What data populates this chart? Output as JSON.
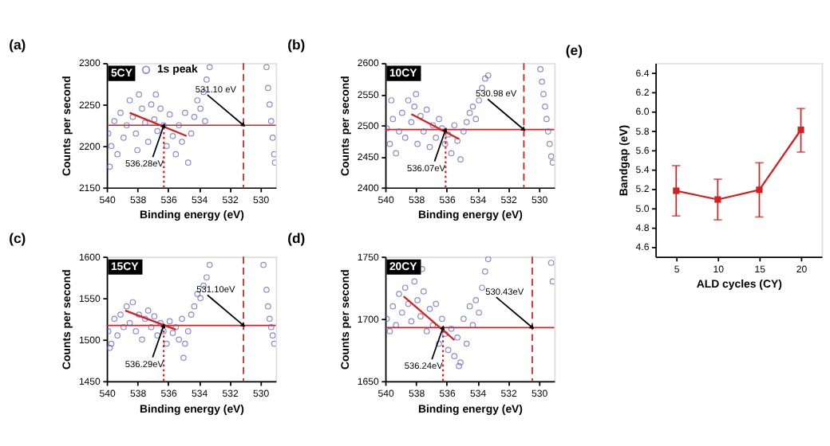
{
  "chart_data": [
    {
      "type": "scatter",
      "title": "(a)",
      "xlabel": "Binding energy (eV)",
      "ylabel": "Counts per second",
      "xlim": [
        540,
        529
      ],
      "xticks": [
        540,
        538,
        536,
        534,
        532,
        530
      ],
      "ylim": [
        2150,
        2300
      ],
      "yticks": [
        2150,
        2200,
        2250,
        2300
      ],
      "legend": "top",
      "series": [
        {
          "name": "1s peak",
          "color": "#5b5bbf",
          "marker": "circle",
          "x": [
            539.9,
            539.8,
            539.7,
            539.5,
            539.3,
            539.1,
            538.9,
            538.7,
            538.5,
            538.3,
            538.1,
            538.0,
            537.9,
            537.7,
            537.5,
            537.3,
            537.1,
            536.9,
            536.8,
            536.7,
            536.5,
            536.3,
            536.1,
            535.9,
            535.7,
            535.5,
            535.3,
            535.1,
            534.9,
            534.7,
            534.5,
            534.3,
            534.1,
            533.9,
            533.7,
            533.6,
            533.5,
            533.3,
            529.6,
            529.5,
            529.4,
            529.3,
            529.2,
            529.1,
            529.05
          ],
          "values": [
            2215,
            2175,
            2200,
            2230,
            2190,
            2240,
            2210,
            2225,
            2255,
            2235,
            2215,
            2195,
            2262,
            2245,
            2228,
            2205,
            2250,
            2232,
            2262,
            2218,
            2245,
            2225,
            2200,
            2238,
            2212,
            2190,
            2225,
            2205,
            2240,
            2180,
            2215,
            2235,
            2255,
            2245,
            2265,
            2230,
            2280,
            2295,
            2295,
            2270,
            2250,
            2230,
            2210,
            2190,
            2180
          ]
        },
        {
          "type": "line",
          "color": "#d62020",
          "x": [
            538.5,
            534.8
          ],
          "values": [
            2240,
            2212
          ]
        },
        {
          "type": "line",
          "color": "#d62020",
          "line_style": "dotted",
          "x": [
            536.28,
            536.28
          ],
          "values": [
            2150,
            2225
          ]
        }
      ],
      "ref_lines": [
        {
          "axis": "y",
          "value": 2225,
          "color": "#d62020",
          "line_style": "solid"
        },
        {
          "axis": "x",
          "value": 531.1,
          "color": "#d62020",
          "line_style": "dashed"
        }
      ],
      "annotations": [
        "5CY",
        {
          "text": "531.10 eV",
          "x": 531.1,
          "y": 2225
        },
        {
          "text": "536.28eV",
          "x": 536.28,
          "y": 2225
        }
      ]
    },
    {
      "type": "scatter",
      "title": "(b)",
      "xlabel": "Binding energy (eV)",
      "ylabel": "Counts per second",
      "xlim": [
        540,
        529
      ],
      "xticks": [
        540,
        538,
        536,
        534,
        532,
        530
      ],
      "ylim": [
        2400,
        2600
      ],
      "yticks": [
        2400,
        2450,
        2500,
        2550,
        2600
      ],
      "legend": "top",
      "series": [
        {
          "name": "1s peak",
          "color": "#5b5bbf",
          "marker": "circle",
          "x": [
            539.9,
            539.7,
            539.6,
            539.5,
            539.3,
            539.1,
            538.9,
            538.7,
            538.5,
            538.3,
            538.1,
            538.0,
            537.9,
            537.7,
            537.5,
            537.3,
            537.1,
            536.9,
            536.7,
            536.5,
            536.3,
            536.1,
            535.9,
            535.7,
            535.5,
            535.3,
            535.1,
            534.9,
            534.7,
            534.5,
            534.3,
            534.1,
            533.9,
            533.7,
            533.5,
            533.3,
            529.9,
            529.8,
            529.7,
            529.6,
            529.5,
            529.4,
            529.3,
            529.2,
            529.1
          ],
          "values": [
            2495,
            2470,
            2540,
            2510,
            2455,
            2490,
            2520,
            2480,
            2540,
            2505,
            2530,
            2550,
            2470,
            2515,
            2490,
            2525,
            2465,
            2500,
            2480,
            2510,
            2495,
            2470,
            2485,
            2455,
            2500,
            2475,
            2445,
            2490,
            2505,
            2520,
            2530,
            2510,
            2540,
            2560,
            2575,
            2580,
            2590,
            2570,
            2550,
            2530,
            2510,
            2490,
            2470,
            2450,
            2440
          ]
        },
        {
          "type": "line",
          "color": "#d62020",
          "x": [
            538.3,
            535.2
          ],
          "values": [
            2518,
            2478
          ]
        },
        {
          "type": "line",
          "color": "#d62020",
          "line_style": "dotted",
          "x": [
            536.07,
            536.07
          ],
          "values": [
            2400,
            2493
          ]
        }
      ],
      "ref_lines": [
        {
          "axis": "y",
          "value": 2493,
          "color": "#d62020",
          "line_style": "solid"
        },
        {
          "axis": "x",
          "value": 530.98,
          "color": "#d62020",
          "line_style": "dashed"
        }
      ],
      "annotations": [
        "10CY",
        {
          "text": "530.98 eV",
          "x": 530.98,
          "y": 2493
        },
        {
          "text": "536.07eV",
          "x": 536.07,
          "y": 2493
        }
      ]
    },
    {
      "type": "scatter",
      "title": "(c)",
      "xlabel": "Binding energy (eV)",
      "ylabel": "Counts per second",
      "xlim": [
        540,
        529
      ],
      "xticks": [
        540,
        538,
        536,
        534,
        532,
        530
      ],
      "ylim": [
        1450,
        1600
      ],
      "yticks": [
        1450,
        1500,
        1550,
        1600
      ],
      "legend": "top",
      "series": [
        {
          "name": "1s peak",
          "color": "#5b5bbf",
          "marker": "circle",
          "x": [
            539.9,
            539.8,
            539.7,
            539.5,
            539.3,
            539.1,
            538.9,
            538.7,
            538.5,
            538.3,
            538.1,
            537.9,
            537.7,
            537.5,
            537.3,
            537.1,
            536.9,
            536.7,
            536.5,
            536.3,
            536.1,
            535.9,
            535.7,
            535.5,
            535.3,
            535.1,
            535.0,
            534.9,
            534.7,
            534.5,
            534.3,
            534.1,
            533.9,
            533.7,
            533.5,
            533.3,
            529.8,
            529.6,
            529.5,
            529.4,
            529.3,
            529.2,
            529.1
          ],
          "values": [
            1510,
            1490,
            1495,
            1525,
            1505,
            1530,
            1515,
            1540,
            1520,
            1545,
            1510,
            1530,
            1500,
            1525,
            1535,
            1515,
            1528,
            1505,
            1520,
            1510,
            1495,
            1522,
            1508,
            1515,
            1500,
            1525,
            1478,
            1495,
            1510,
            1530,
            1540,
            1555,
            1550,
            1565,
            1575,
            1590,
            1590,
            1560,
            1540,
            1525,
            1515,
            1505,
            1495
          ]
        },
        {
          "type": "line",
          "color": "#d62020",
          "x": [
            538.8,
            535.5
          ],
          "values": [
            1535,
            1512
          ]
        },
        {
          "type": "line",
          "color": "#d62020",
          "line_style": "dotted",
          "x": [
            536.29,
            536.29
          ],
          "values": [
            1450,
            1517
          ]
        }
      ],
      "ref_lines": [
        {
          "axis": "y",
          "value": 1517,
          "color": "#d62020",
          "line_style": "solid"
        },
        {
          "axis": "x",
          "value": 531.1,
          "color": "#d62020",
          "line_style": "dashed"
        }
      ],
      "annotations": [
        "15CY",
        {
          "text": "531.10eV",
          "x": 531.1,
          "y": 1517
        },
        {
          "text": "536.29eV",
          "x": 536.29,
          "y": 1517
        }
      ]
    },
    {
      "type": "scatter",
      "title": "(d)",
      "xlabel": "Binding energy (eV)",
      "ylabel": "Counts per second",
      "xlim": [
        540,
        529
      ],
      "xticks": [
        540,
        538,
        536,
        534,
        532,
        530
      ],
      "ylim": [
        1650,
        1750
      ],
      "yticks": [
        1650,
        1700,
        1750
      ],
      "legend": "top",
      "series": [
        {
          "name": "1s peak",
          "color": "#5b5bbf",
          "marker": "circle",
          "x": [
            539.9,
            539.7,
            539.5,
            539.3,
            539.1,
            538.9,
            538.7,
            538.5,
            538.3,
            538.1,
            537.9,
            537.7,
            537.6,
            537.5,
            537.3,
            537.1,
            536.9,
            536.7,
            536.5,
            536.3,
            536.1,
            535.9,
            535.7,
            535.5,
            535.3,
            535.2,
            535.1,
            534.9,
            534.7,
            534.5,
            534.3,
            534.1,
            533.9,
            533.7,
            533.5,
            533.3,
            529.2,
            529.1
          ],
          "values": [
            1700,
            1690,
            1710,
            1695,
            1720,
            1705,
            1725,
            1712,
            1698,
            1730,
            1715,
            1702,
            1740,
            1722,
            1690,
            1708,
            1695,
            1712,
            1680,
            1700,
            1688,
            1675,
            1692,
            1670,
            1685,
            1662,
            1665,
            1700,
            1680,
            1710,
            1695,
            1715,
            1705,
            1725,
            1738,
            1748,
            1745,
            1730
          ]
        },
        {
          "type": "line",
          "color": "#d62020",
          "x": [
            538.8,
            535.5
          ],
          "values": [
            1718,
            1683
          ]
        },
        {
          "type": "line",
          "color": "#d62020",
          "line_style": "dotted",
          "x": [
            536.24,
            536.24
          ],
          "values": [
            1650,
            1693
          ]
        }
      ],
      "ref_lines": [
        {
          "axis": "y",
          "value": 1693,
          "color": "#d62020",
          "line_style": "solid"
        },
        {
          "axis": "x",
          "value": 530.43,
          "color": "#d62020",
          "line_style": "dashed"
        }
      ],
      "annotations": [
        "20CY",
        {
          "text": "530.43eV",
          "x": 530.43,
          "y": 1693
        },
        {
          "text": "536.24eV",
          "x": 536.24,
          "y": 1693
        }
      ]
    },
    {
      "type": "line",
      "title": "(e)",
      "xlabel": "ALD cycles (CY)",
      "ylabel": "Bandgap (eV)",
      "xlim": [
        2.5,
        22.5
      ],
      "xticks": [
        5,
        10,
        15,
        20
      ],
      "ylim": [
        4.5,
        6.5
      ],
      "yticks": [
        4.6,
        4.8,
        {
          "value": 5,
          "label": "5.0"
        },
        5.2,
        5.4,
        5.6,
        5.8,
        {
          "value": 6,
          "label": "6.0"
        },
        6.2,
        6.4
      ],
      "marker": "square",
      "x": [
        5,
        10,
        15,
        20
      ],
      "series": [
        {
          "color": "#d62020",
          "values": [
            5.18,
            5.09,
            5.19,
            5.81
          ],
          "errors": [
            [
              4.92,
              5.44
            ],
            [
              4.88,
              5.3
            ],
            [
              4.91,
              5.47
            ],
            [
              5.58,
              6.03
            ]
          ]
        }
      ]
    }
  ]
}
